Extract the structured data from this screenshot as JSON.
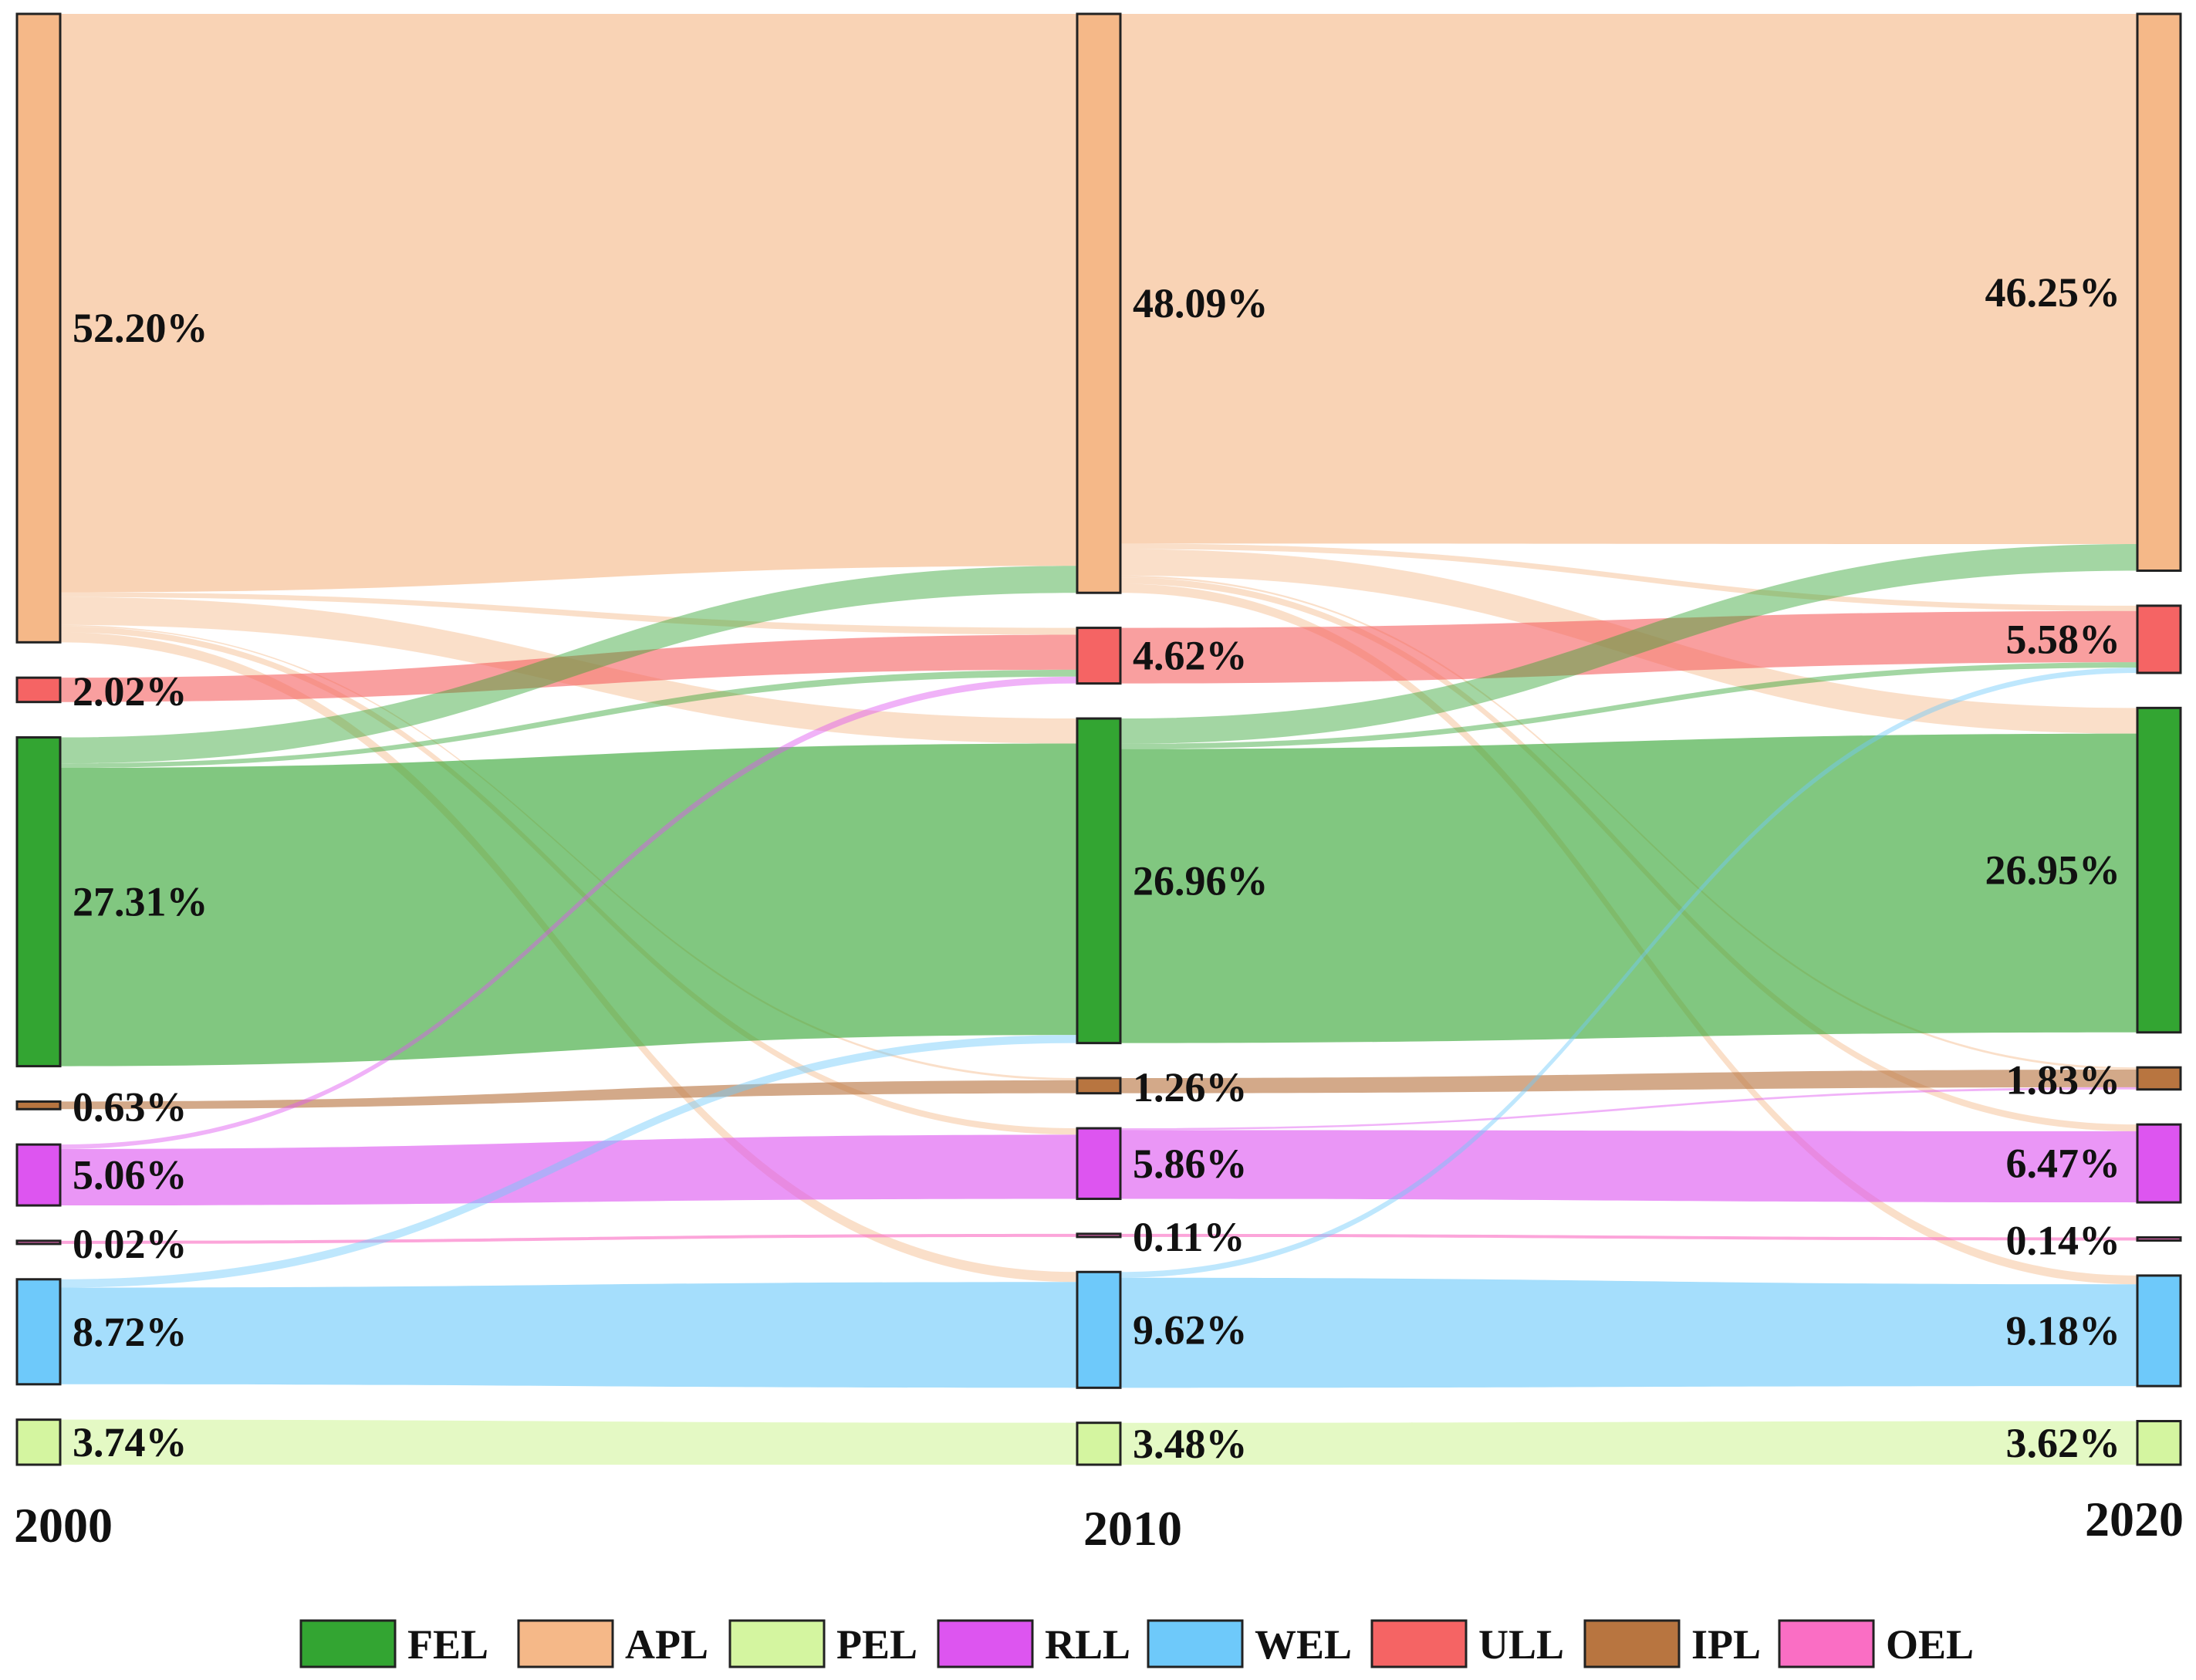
{
  "chart_data": {
    "type": "sankey",
    "title": "",
    "years": [
      "2000",
      "2010",
      "2020"
    ],
    "categories": [
      "FEL",
      "APL",
      "PEL",
      "RLL",
      "WEL",
      "ULL",
      "IPL",
      "OEL"
    ],
    "node_order": [
      "APL",
      "ULL",
      "FEL",
      "IPL",
      "RLL",
      "OEL",
      "WEL",
      "PEL"
    ],
    "colors": {
      "FEL": "#33a532",
      "APL": "#f5b888",
      "PEL": "#d4f5a0",
      "RLL": "#dd55f0",
      "WEL": "#6ec9fa",
      "ULL": "#f56464",
      "IPL": "#b87540",
      "OEL": "#fa6ec4"
    },
    "shares": {
      "2000": {
        "APL": 52.2,
        "ULL": 2.02,
        "FEL": 27.31,
        "IPL": 0.63,
        "RLL": 5.06,
        "OEL": 0.02,
        "WEL": 8.72,
        "PEL": 3.74
      },
      "2010": {
        "APL": 48.09,
        "ULL": 4.62,
        "FEL": 26.96,
        "IPL": 1.26,
        "RLL": 5.86,
        "OEL": 0.11,
        "WEL": 9.62,
        "PEL": 3.48
      },
      "2020": {
        "APL": 46.25,
        "ULL": 5.58,
        "FEL": 26.95,
        "IPL": 1.83,
        "RLL": 6.47,
        "OEL": 0.14,
        "WEL": 9.18,
        "PEL": 3.62
      }
    },
    "labels": {
      "2000": {
        "APL": "52.20%",
        "ULL": "2.02%",
        "FEL": "27.31%",
        "IPL": "0.63%",
        "RLL": "5.06%",
        "OEL": "0.02%",
        "WEL": "8.72%",
        "PEL": "3.74%"
      },
      "2010": {
        "APL": "48.09%",
        "ULL": "4.62%",
        "FEL": "26.96%",
        "IPL": "1.26%",
        "RLL": "5.86%",
        "OEL": "0.11%",
        "WEL": "9.62%",
        "PEL": "3.48%"
      },
      "2020": {
        "APL": "46.25%",
        "ULL": "5.58%",
        "FEL": "26.95%",
        "IPL": "1.83%",
        "RLL": "6.47%",
        "OEL": "0.14%",
        "WEL": "9.18%",
        "PEL": "3.62%"
      }
    },
    "flows": [
      {
        "period": "2000-2010",
        "from": "APL",
        "to": "APL"
      },
      {
        "period": "2000-2010",
        "from": "APL",
        "to": "ULL"
      },
      {
        "period": "2000-2010",
        "from": "APL",
        "to": "FEL"
      },
      {
        "period": "2000-2010",
        "from": "APL",
        "to": "IPL"
      },
      {
        "period": "2000-2010",
        "from": "APL",
        "to": "RLL"
      },
      {
        "period": "2000-2010",
        "from": "APL",
        "to": "WEL"
      },
      {
        "period": "2000-2010",
        "from": "ULL",
        "to": "ULL"
      },
      {
        "period": "2000-2010",
        "from": "FEL",
        "to": "FEL"
      },
      {
        "period": "2000-2010",
        "from": "FEL",
        "to": "ULL"
      },
      {
        "period": "2000-2010",
        "from": "FEL",
        "to": "APL"
      },
      {
        "period": "2000-2010",
        "from": "IPL",
        "to": "IPL"
      },
      {
        "period": "2000-2010",
        "from": "RLL",
        "to": "RLL"
      },
      {
        "period": "2000-2010",
        "from": "RLL",
        "to": "ULL"
      },
      {
        "period": "2000-2010",
        "from": "OEL",
        "to": "OEL"
      },
      {
        "period": "2000-2010",
        "from": "WEL",
        "to": "WEL"
      },
      {
        "period": "2000-2010",
        "from": "WEL",
        "to": "FEL"
      },
      {
        "period": "2000-2010",
        "from": "PEL",
        "to": "PEL"
      },
      {
        "period": "2010-2020",
        "from": "APL",
        "to": "APL"
      },
      {
        "period": "2010-2020",
        "from": "APL",
        "to": "ULL"
      },
      {
        "period": "2010-2020",
        "from": "APL",
        "to": "FEL"
      },
      {
        "period": "2010-2020",
        "from": "APL",
        "to": "IPL"
      },
      {
        "period": "2010-2020",
        "from": "APL",
        "to": "RLL"
      },
      {
        "period": "2010-2020",
        "from": "APL",
        "to": "WEL"
      },
      {
        "period": "2010-2020",
        "from": "ULL",
        "to": "ULL"
      },
      {
        "period": "2010-2020",
        "from": "FEL",
        "to": "FEL"
      },
      {
        "period": "2010-2020",
        "from": "FEL",
        "to": "APL"
      },
      {
        "period": "2010-2020",
        "from": "FEL",
        "to": "ULL"
      },
      {
        "period": "2010-2020",
        "from": "IPL",
        "to": "IPL"
      },
      {
        "period": "2010-2020",
        "from": "RLL",
        "to": "RLL"
      },
      {
        "period": "2010-2020",
        "from": "RLL",
        "to": "IPL"
      },
      {
        "period": "2010-2020",
        "from": "OEL",
        "to": "OEL"
      },
      {
        "period": "2010-2020",
        "from": "WEL",
        "to": "WEL"
      },
      {
        "period": "2010-2020",
        "from": "WEL",
        "to": "ULL"
      },
      {
        "period": "2010-2020",
        "from": "PEL",
        "to": "PEL"
      }
    ],
    "legend": [
      "FEL",
      "APL",
      "PEL",
      "RLL",
      "WEL",
      "ULL",
      "IPL",
      "OEL"
    ],
    "legend_position": "bottom"
  }
}
